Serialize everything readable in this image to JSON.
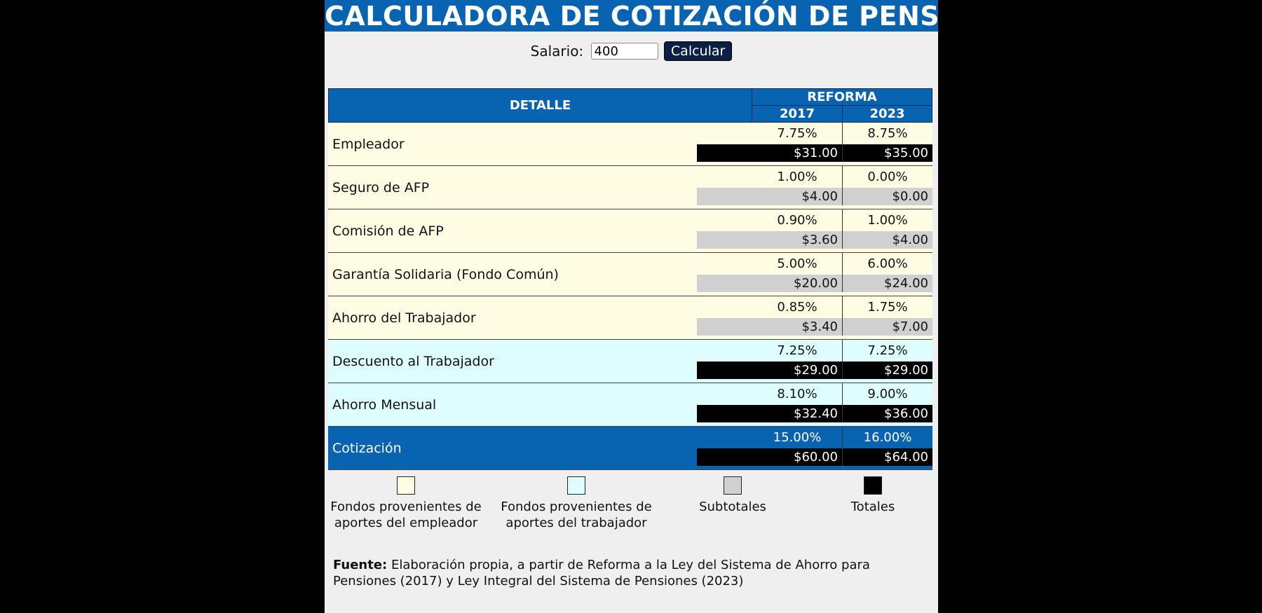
{
  "header": {
    "title": "CALCULADORA DE COTIZACIÓN DE PENSIONES"
  },
  "salary": {
    "label": "Salario:",
    "value": "400",
    "button_label": "Calcular"
  },
  "table": {
    "detail_header": "DETALLE",
    "reform_header": "REFORMA",
    "years": [
      "2017",
      "2023"
    ],
    "rows": [
      {
        "label": "Empleador",
        "group": "employer",
        "pct_2017": "7.75%",
        "pct_2023": "8.75%",
        "amt_2017": "$31.00",
        "amt_2023": "$35.00",
        "amount_type": "total"
      },
      {
        "label": "Seguro de AFP",
        "group": "employer",
        "pct_2017": "1.00%",
        "pct_2023": "0.00%",
        "amt_2017": "$4.00",
        "amt_2023": "$0.00",
        "amount_type": "subtotal"
      },
      {
        "label": "Comisión de AFP",
        "group": "employer",
        "pct_2017": "0.90%",
        "pct_2023": "1.00%",
        "amt_2017": "$3.60",
        "amt_2023": "$4.00",
        "amount_type": "subtotal"
      },
      {
        "label": "Garantía Solidaria (Fondo Común)",
        "group": "employer",
        "pct_2017": "5.00%",
        "pct_2023": "6.00%",
        "amt_2017": "$20.00",
        "amt_2023": "$24.00",
        "amount_type": "subtotal"
      },
      {
        "label": "Ahorro del Trabajador",
        "group": "employer",
        "pct_2017": "0.85%",
        "pct_2023": "1.75%",
        "amt_2017": "$3.40",
        "amt_2023": "$7.00",
        "amount_type": "subtotal"
      },
      {
        "label": "Descuento al Trabajador",
        "group": "worker",
        "pct_2017": "7.25%",
        "pct_2023": "7.25%",
        "amt_2017": "$29.00",
        "amt_2023": "$29.00",
        "amount_type": "total"
      },
      {
        "label": "Ahorro Mensual",
        "group": "worker",
        "pct_2017": "8.10%",
        "pct_2023": "9.00%",
        "amt_2017": "$32.40",
        "amt_2023": "$36.00",
        "amount_type": "total"
      },
      {
        "label": "Cotización",
        "group": "total",
        "pct_2017": "15.00%",
        "pct_2023": "16.00%",
        "amt_2017": "$60.00",
        "amt_2023": "$64.00",
        "amount_type": "total"
      }
    ]
  },
  "legend": {
    "employer": "Fondos provenientes de aportes del empleador",
    "worker": "Fondos provenientes de aportes del trabajador",
    "subtotals": "Subtotales",
    "totals": "Totales"
  },
  "colors": {
    "employer": "#fefde4",
    "worker": "#defdfe",
    "subtotal": "#d0d0d0",
    "total": "#000000",
    "accent": "#0863b0"
  },
  "source": {
    "label": "Fuente:",
    "text": "Elaboración propia, a partir de Reforma a la Ley del Sistema de Ahorro para Pensiones (2017) y Ley Integral del Sistema de Pensiones (2023)"
  }
}
